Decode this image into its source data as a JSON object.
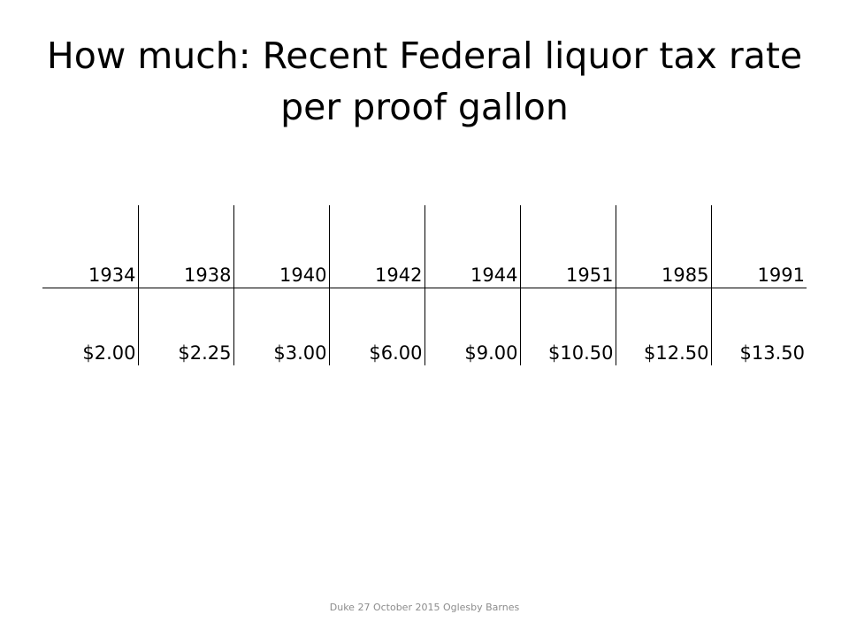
{
  "slide": {
    "title": "How much: Recent Federal liquor tax rate per proof gallon",
    "footer": "Duke 27 October 2015 Oglesby Barnes"
  },
  "table": {
    "years": [
      "1934",
      "1938",
      "1940",
      "1942",
      "1944",
      "1951",
      "1985",
      "1991"
    ],
    "rates": [
      "$2.00",
      "$2.25",
      "$3.00",
      "$6.00",
      "$9.00",
      "$10.50",
      "$12.50",
      "$13.50"
    ]
  }
}
